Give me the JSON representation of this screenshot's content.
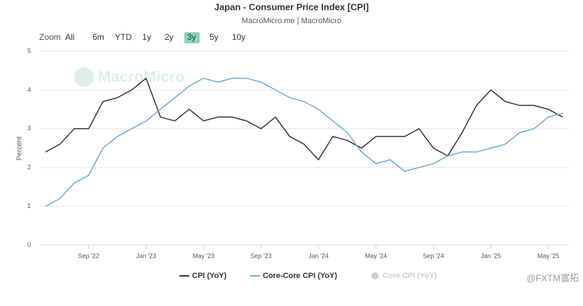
{
  "chart_data": {
    "type": "line",
    "title": "Japan - Consumer Price Index [CPI]",
    "subtitle": "MacroMicro.me | MacroMicro",
    "watermark": "MacroMicro",
    "corner_mark": "@FXTM富拓",
    "zoom_label": "Zoom",
    "zoom_buttons": [
      "All",
      "6m",
      "YTD",
      "1y",
      "2y",
      "3y",
      "5y",
      "10y"
    ],
    "zoom_selected": "3y",
    "y_label": "Percent",
    "categories": [
      null,
      null,
      null,
      "Sep '22",
      null,
      null,
      null,
      "Jan '23",
      null,
      null,
      null,
      "May '23",
      null,
      null,
      null,
      "Sep '23",
      null,
      null,
      null,
      "Jan '24",
      null,
      null,
      null,
      "May '24",
      null,
      null,
      null,
      "Sep '24",
      null,
      null,
      null,
      "Jan '25",
      null,
      null,
      null,
      "May '25",
      null
    ],
    "series": [
      {
        "name": "CPI (YoY)",
        "color": "#333333",
        "values": [
          2.4,
          2.6,
          3.0,
          3.0,
          3.7,
          3.8,
          4.0,
          4.3,
          3.3,
          3.2,
          3.5,
          3.2,
          3.3,
          3.3,
          3.2,
          3.0,
          3.3,
          2.8,
          2.6,
          2.2,
          2.8,
          2.7,
          2.5,
          2.8,
          2.8,
          2.8,
          3.0,
          2.5,
          2.3,
          2.9,
          3.6,
          4.0,
          3.7,
          3.6,
          3.6,
          3.5,
          3.3
        ]
      },
      {
        "name": "Core-Core CPI (YoY)",
        "color": "#6fa8d6",
        "values": [
          1.0,
          1.2,
          1.6,
          1.8,
          2.5,
          2.8,
          3.0,
          3.2,
          3.5,
          3.8,
          4.1,
          4.3,
          4.2,
          4.3,
          4.3,
          4.2,
          4.0,
          3.8,
          3.7,
          3.5,
          3.2,
          2.9,
          2.4,
          2.1,
          2.2,
          1.9,
          2.0,
          2.1,
          2.3,
          2.4,
          2.4,
          2.5,
          2.6,
          2.9,
          3.0,
          3.3,
          3.4
        ]
      }
    ],
    "hidden_series": [
      {
        "name": "Core CPI (YoY)",
        "color": "#cccccc"
      }
    ],
    "ylim": [
      0,
      5
    ],
    "yticks": [
      0,
      1,
      2,
      3,
      4,
      5
    ],
    "grid": true
  }
}
